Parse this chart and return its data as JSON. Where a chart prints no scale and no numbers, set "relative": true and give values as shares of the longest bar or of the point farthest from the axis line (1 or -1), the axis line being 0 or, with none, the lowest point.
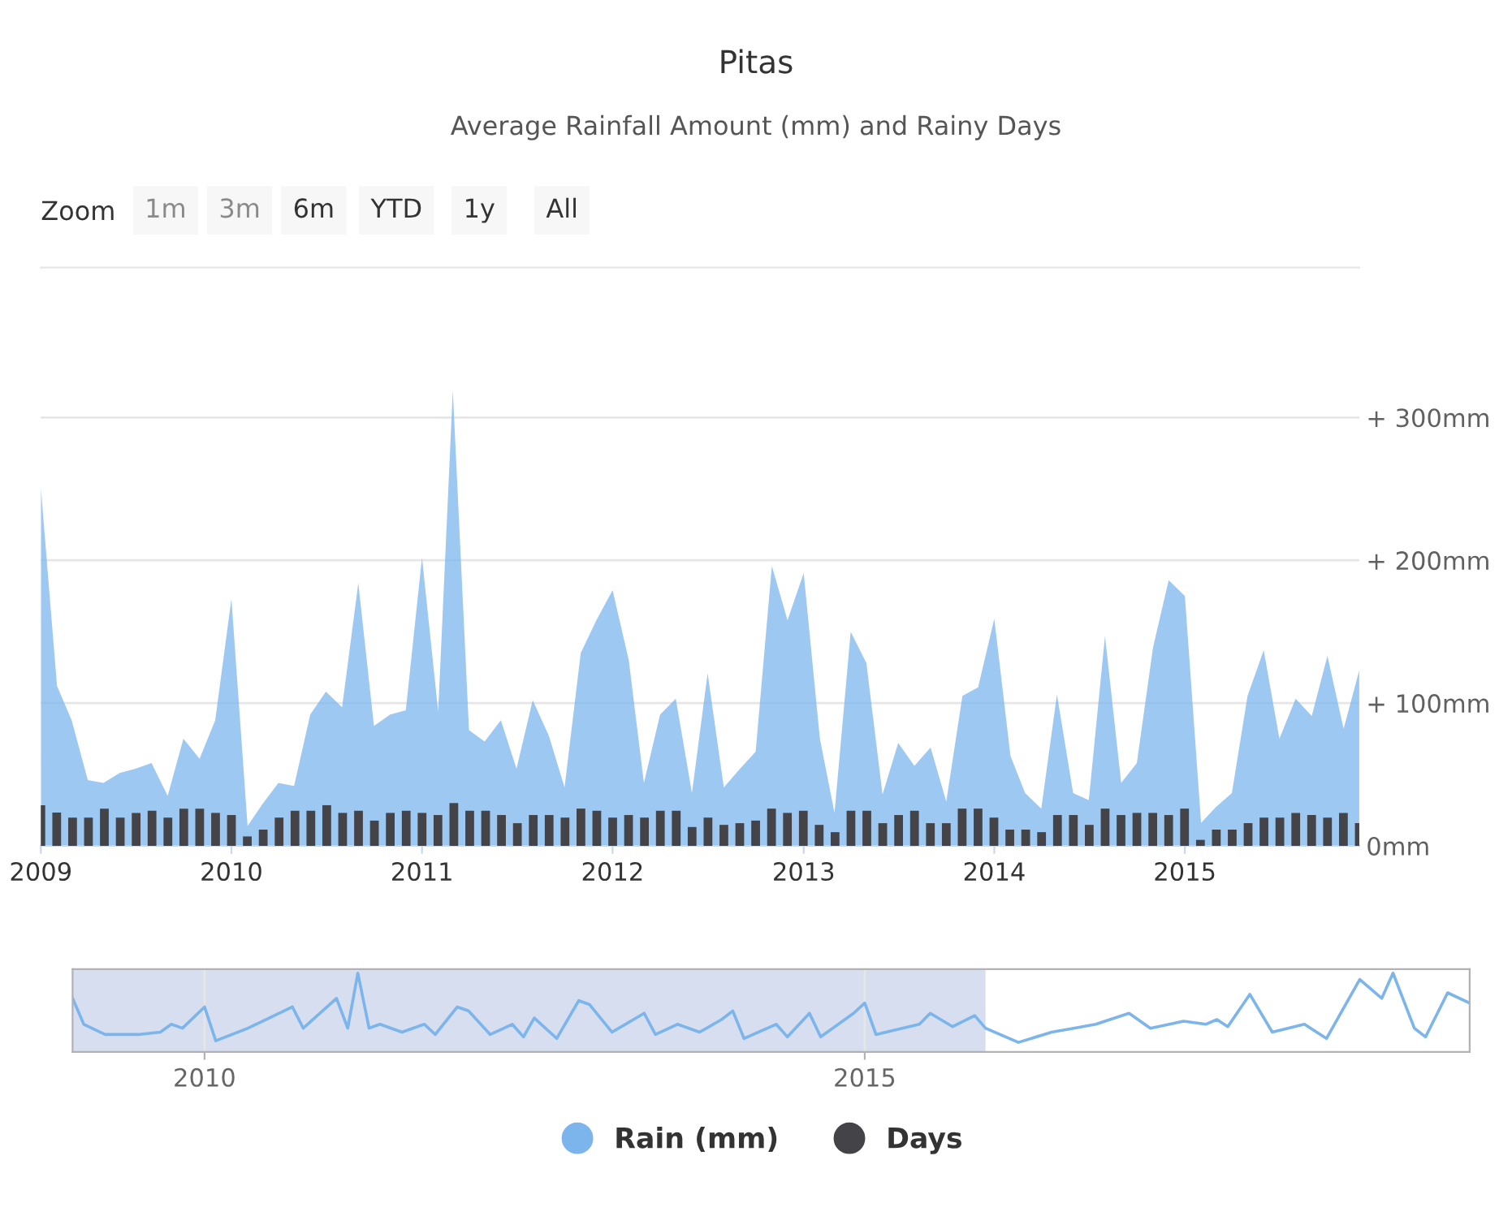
{
  "chart_data": [
    {
      "type": "area",
      "title": "Pitas",
      "subtitle": "Average Rainfall Amount (mm) and Rainy Days",
      "annotations": [
        "Zoom",
        "1m",
        "3m",
        "6m",
        "YTD",
        "1y",
        "All"
      ],
      "x": [
        "2009-01",
        "2009-02",
        "2009-03",
        "2009-04",
        "2009-05",
        "2009-06",
        "2009-07",
        "2009-08",
        "2009-09",
        "2009-10",
        "2009-11",
        "2009-12",
        "2010-01",
        "2010-02",
        "2010-03",
        "2010-04",
        "2010-05",
        "2010-06",
        "2010-07",
        "2010-08",
        "2010-09",
        "2010-10",
        "2010-11",
        "2010-12",
        "2011-01",
        "2011-02",
        "2011-03",
        "2011-04",
        "2011-05",
        "2011-06",
        "2011-07",
        "2011-08",
        "2011-09",
        "2011-10",
        "2011-11",
        "2011-12",
        "2012-01",
        "2012-02",
        "2012-03",
        "2012-04",
        "2012-05",
        "2012-06",
        "2012-07",
        "2012-08",
        "2012-09",
        "2012-10",
        "2012-11",
        "2012-12",
        "2013-01",
        "2013-02",
        "2013-03",
        "2013-04",
        "2013-05",
        "2013-06",
        "2013-07",
        "2013-08",
        "2013-09",
        "2013-10",
        "2013-11",
        "2013-12",
        "2014-01",
        "2014-02",
        "2014-03",
        "2014-04",
        "2014-05",
        "2014-06",
        "2014-07",
        "2014-08",
        "2014-09",
        "2014-10",
        "2014-11",
        "2014-12",
        "2015-01",
        "2015-02",
        "2015-03",
        "2015-04",
        "2015-05",
        "2015-06",
        "2015-07",
        "2015-08",
        "2015-09",
        "2015-10",
        "2015-11",
        "2015-12"
      ],
      "series": [
        {
          "name": "Rain (mm)",
          "type": "area",
          "color": "#7cb5ec",
          "values": [
            251,
            112,
            88,
            46,
            44,
            51,
            54,
            58,
            35,
            75,
            61,
            88,
            173,
            14,
            29,
            44,
            42,
            92,
            108,
            97,
            184,
            84,
            92,
            95,
            202,
            94,
            319,
            81,
            73,
            88,
            54,
            102,
            77,
            41,
            135,
            158,
            179,
            130,
            44,
            92,
            103,
            37,
            121,
            41,
            54,
            66,
            196,
            158,
            191,
            75,
            23,
            150,
            128,
            36,
            72,
            56,
            69,
            31,
            105,
            111,
            159,
            63,
            37,
            26,
            106,
            37,
            32,
            147,
            44,
            58,
            139,
            186,
            175,
            16,
            27,
            37,
            105,
            137,
            75,
            103,
            91,
            133,
            82,
            123
          ]
        }
      ],
      "xlim": [
        "2009-01",
        "2015-12"
      ],
      "xticks": [
        {
          "value": "2009-01",
          "label": "2009"
        },
        {
          "value": "2010-01",
          "label": "2010"
        },
        {
          "value": "2011-01",
          "label": "2011"
        },
        {
          "value": "2012-01",
          "label": "2012"
        },
        {
          "value": "2013-01",
          "label": "2013"
        },
        {
          "value": "2014-01",
          "label": "2014"
        },
        {
          "value": "2015-01",
          "label": "2015"
        }
      ],
      "ylim": [
        0,
        405
      ],
      "yticks": [
        {
          "value": 0,
          "label": "0mm"
        },
        {
          "value": 100,
          "label": "+ 100mm"
        },
        {
          "value": 200,
          "label": "+ 200mm"
        },
        {
          "value": 300,
          "label": "+ 300mm"
        }
      ],
      "grid": "y",
      "legend": "bottom"
    },
    {
      "type": "line",
      "relative": true,
      "x": [
        "2009-01",
        "2009-02",
        "2009-04",
        "2009-07",
        "2009-09",
        "2009-10",
        "2009-11",
        "2010-01",
        "2010-02",
        "2010-05",
        "2010-09",
        "2010-10",
        "2011-01",
        "2011-02",
        "2011-03",
        "2011-04",
        "2011-05",
        "2011-07",
        "2011-09",
        "2011-10",
        "2011-12",
        "2012-01",
        "2012-03",
        "2012-05",
        "2012-06",
        "2012-07",
        "2012-09",
        "2012-11",
        "2012-12",
        "2013-02",
        "2013-05",
        "2013-06",
        "2013-08",
        "2013-10",
        "2013-12",
        "2014-01",
        "2014-02",
        "2014-05",
        "2014-06",
        "2014-08",
        "2014-09",
        "2014-12",
        "2015-01",
        "2015-02",
        "2015-06",
        "2015-07",
        "2015-09",
        "2015-11",
        "2015-12",
        "2016-03",
        "2016-06",
        "2016-08",
        "2016-10",
        "2017-01",
        "2017-03",
        "2017-06",
        "2017-08",
        "2017-09",
        "2017-10",
        "2017-12",
        "2018-02",
        "2018-05",
        "2018-07",
        "2018-10",
        "2018-12",
        "2019-01",
        "2019-03",
        "2019-04",
        "2019-06",
        "2019-08"
      ],
      "series": [
        {
          "color": "#7cb5ec",
          "values": [
            0.68,
            0.35,
            0.22,
            0.22,
            0.25,
            0.35,
            0.3,
            0.57,
            0.14,
            0.3,
            0.57,
            0.3,
            0.68,
            0.3,
            1.0,
            0.3,
            0.35,
            0.25,
            0.35,
            0.22,
            0.57,
            0.52,
            0.22,
            0.35,
            0.19,
            0.43,
            0.17,
            0.65,
            0.6,
            0.25,
            0.49,
            0.22,
            0.35,
            0.25,
            0.41,
            0.52,
            0.17,
            0.35,
            0.19,
            0.49,
            0.19,
            0.49,
            0.62,
            0.22,
            0.35,
            0.49,
            0.32,
            0.46,
            0.3,
            0.12,
            0.25,
            0.3,
            0.35,
            0.49,
            0.3,
            0.39,
            0.35,
            0.41,
            0.32,
            0.73,
            0.25,
            0.35,
            0.17,
            0.92,
            0.68,
            1.0,
            0.3,
            0.19,
            0.75,
            0.62
          ]
        }
      ],
      "xlim": [
        "2009-01",
        "2019-08"
      ],
      "xticks": [
        {
          "value": "2010-01",
          "label": "2010"
        },
        {
          "value": "2015-01",
          "label": "2015"
        }
      ],
      "bands": [
        {
          "axis": "x",
          "from": "2009-01",
          "to": "2015-12",
          "color": "#ccd6eb"
        }
      ],
      "grid": "x"
    },
    {
      "type": "bar",
      "relative": true,
      "categories": [
        null,
        null,
        null,
        null,
        null,
        null,
        null,
        null,
        null,
        null,
        null,
        null,
        null,
        null,
        null,
        null,
        null,
        null,
        null,
        null,
        null,
        null,
        null,
        null,
        null,
        null,
        null,
        null,
        null,
        null,
        null,
        null,
        null,
        null,
        null,
        null,
        null,
        null,
        null,
        null,
        null,
        null,
        null,
        null,
        null,
        null,
        null,
        null,
        null,
        null,
        null,
        null,
        null,
        null,
        null,
        null,
        null,
        null,
        null,
        null,
        null,
        null,
        null,
        null,
        null,
        null,
        null,
        null,
        null,
        null,
        null,
        null,
        null,
        null,
        null,
        null,
        null,
        null,
        null,
        null,
        null,
        null,
        null,
        null
      ],
      "series": [
        {
          "name": "Days",
          "color": "#434348",
          "values": [
            0.95,
            0.78,
            0.66,
            0.66,
            0.87,
            0.66,
            0.77,
            0.82,
            0.66,
            0.87,
            0.87,
            0.77,
            0.72,
            0.22,
            0.38,
            0.66,
            0.82,
            0.82,
            0.95,
            0.77,
            0.82,
            0.59,
            0.77,
            0.82,
            0.77,
            0.72,
            1.0,
            0.82,
            0.82,
            0.72,
            0.53,
            0.72,
            0.72,
            0.66,
            0.87,
            0.82,
            0.66,
            0.72,
            0.66,
            0.82,
            0.82,
            0.44,
            0.66,
            0.49,
            0.53,
            0.59,
            0.87,
            0.77,
            0.82,
            0.49,
            0.32,
            0.82,
            0.82,
            0.53,
            0.72,
            0.82,
            0.53,
            0.53,
            0.87,
            0.87,
            0.66,
            0.38,
            0.38,
            0.32,
            0.72,
            0.72,
            0.49,
            0.87,
            0.72,
            0.77,
            0.77,
            0.72,
            0.87,
            0.14,
            0.38,
            0.38,
            0.53,
            0.66,
            0.66,
            0.77,
            0.72,
            0.66,
            0.77,
            0.53
          ]
        }
      ]
    }
  ]
}
